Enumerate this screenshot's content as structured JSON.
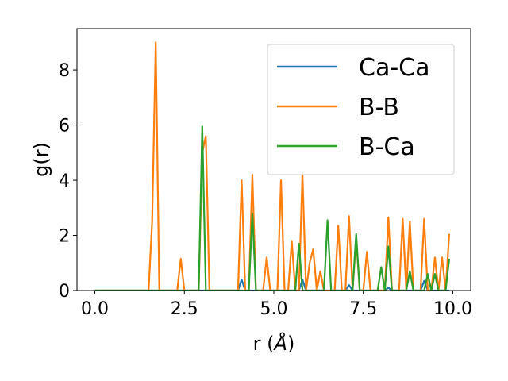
{
  "chart_data": {
    "type": "line",
    "xlabel": "r (",
    "xlabel_unit": "Å",
    "xlabel_close": ")",
    "ylabel": "g(r)",
    "xlim": [
      -0.5,
      10.5
    ],
    "ylim": [
      0,
      9.5
    ],
    "xticks": [
      0.0,
      2.5,
      5.0,
      7.5,
      10.0
    ],
    "xtick_labels": [
      "0.0",
      "2.5",
      "5.0",
      "7.5",
      "10.0"
    ],
    "yticks": [
      0,
      2,
      4,
      6,
      8
    ],
    "ytick_labels": [
      "0",
      "2",
      "4",
      "6",
      "8"
    ],
    "grid": false,
    "legend_position": "top-right",
    "x": [
      0.0,
      0.1,
      0.2,
      0.3,
      0.4,
      0.5,
      0.6,
      0.7,
      0.8,
      0.9,
      1.0,
      1.1,
      1.2,
      1.3,
      1.4,
      1.5,
      1.6,
      1.7,
      1.8,
      1.9,
      2.0,
      2.1,
      2.2,
      2.3,
      2.4,
      2.5,
      2.6,
      2.7,
      2.8,
      2.9,
      3.0,
      3.1,
      3.2,
      3.3,
      3.4,
      3.5,
      3.6,
      3.7,
      3.8,
      3.9,
      4.0,
      4.1,
      4.2,
      4.3,
      4.4,
      4.5,
      4.6,
      4.7,
      4.8,
      4.9,
      5.0,
      5.1,
      5.2,
      5.3,
      5.4,
      5.5,
      5.6,
      5.7,
      5.8,
      5.9,
      6.0,
      6.1,
      6.2,
      6.3,
      6.4,
      6.5,
      6.6,
      6.7,
      6.8,
      6.9,
      7.0,
      7.1,
      7.2,
      7.3,
      7.4,
      7.5,
      7.6,
      7.7,
      7.8,
      7.9,
      8.0,
      8.1,
      8.2,
      8.3,
      8.4,
      8.5,
      8.6,
      8.7,
      8.8,
      8.9,
      9.0,
      9.1,
      9.2,
      9.3,
      9.4,
      9.5,
      9.6,
      9.7,
      9.8,
      9.9
    ],
    "series": [
      {
        "name": "Ca-Ca",
        "color": "#1f77b4",
        "values": [
          0,
          0,
          0,
          0,
          0,
          0,
          0,
          0,
          0,
          0,
          0,
          0,
          0,
          0,
          0,
          0,
          0,
          0,
          0,
          0,
          0,
          0,
          0,
          0,
          0,
          0,
          0,
          0,
          0,
          0,
          0,
          0,
          0,
          0,
          0,
          0,
          0,
          0,
          0,
          0,
          0,
          0.4,
          0,
          0,
          0,
          0,
          0,
          0,
          0,
          0,
          0,
          0,
          0,
          0,
          0,
          0,
          0,
          0,
          0.4,
          0,
          0,
          0,
          0,
          0,
          0,
          0,
          0,
          0,
          0,
          0,
          0,
          0.2,
          0,
          0,
          0,
          0,
          0,
          0,
          0,
          0,
          0,
          0,
          0.1,
          0,
          0,
          0,
          0,
          0,
          0,
          0,
          0,
          0,
          0.35,
          0,
          0,
          0,
          0,
          0,
          0,
          0
        ]
      },
      {
        "name": "B-B",
        "color": "#ff7f0e",
        "values": [
          0,
          0,
          0,
          0,
          0,
          0,
          0,
          0,
          0,
          0,
          0,
          0,
          0,
          0,
          0,
          0,
          2.5,
          9.0,
          0,
          0,
          0,
          0,
          0,
          0,
          1.15,
          0,
          0,
          0,
          0,
          0,
          5.0,
          5.6,
          0,
          0,
          0,
          0,
          0,
          0,
          0,
          0,
          0,
          4.0,
          0,
          0,
          4.2,
          0,
          0,
          0,
          1.2,
          0,
          0,
          0,
          4.0,
          0,
          0,
          1.8,
          0,
          0,
          4.25,
          0,
          1.0,
          1.5,
          0,
          0.7,
          0,
          0,
          0,
          0,
          2.35,
          0,
          0,
          2.7,
          0,
          1.9,
          0,
          0,
          1.4,
          0,
          0,
          0,
          0,
          0,
          2.65,
          0,
          0,
          0,
          2.6,
          0,
          2.5,
          0,
          0,
          0,
          2.6,
          0,
          0,
          1.2,
          0,
          1.2,
          0,
          2.05
        ]
      },
      {
        "name": "B-Ca",
        "color": "#2ca02c",
        "values": [
          0,
          0,
          0,
          0,
          0,
          0,
          0,
          0,
          0,
          0,
          0,
          0,
          0,
          0,
          0,
          0,
          0,
          0,
          0,
          0,
          0,
          0,
          0,
          0,
          0,
          0,
          0,
          0,
          0,
          0,
          5.95,
          0,
          0,
          0,
          0,
          0,
          0,
          0,
          0,
          0,
          0,
          0,
          0,
          0,
          2.8,
          0,
          0,
          0,
          0,
          0,
          0,
          0,
          0,
          0,
          0,
          0,
          0,
          1.7,
          0,
          0,
          0,
          0,
          0,
          0,
          0,
          2.55,
          0,
          0,
          0,
          0,
          0,
          0,
          0,
          2.05,
          0,
          0,
          0,
          0,
          0,
          0,
          0.85,
          0,
          1.6,
          0,
          0,
          0,
          0,
          0,
          0.7,
          0,
          0,
          0,
          0,
          0.6,
          0,
          0.6,
          0,
          0,
          0,
          1.15
        ]
      }
    ]
  }
}
